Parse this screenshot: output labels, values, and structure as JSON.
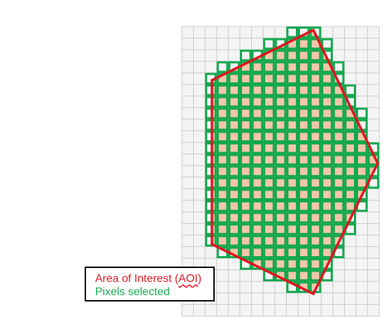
{
  "legend": {
    "aoi_prefix": "Area of Interest (",
    "aoi_abbrev": "AOI",
    "aoi_suffix": ")",
    "pixels_label": "Pixels selected"
  },
  "colors": {
    "grid_line": "#c8c8c8",
    "grid_bg": "#f4f4f4",
    "selected_stroke": "#12a84e",
    "aoi_stroke": "#e0141e",
    "aoi_fill": "#f2c6aa",
    "legend_border": "#000000"
  }
}
